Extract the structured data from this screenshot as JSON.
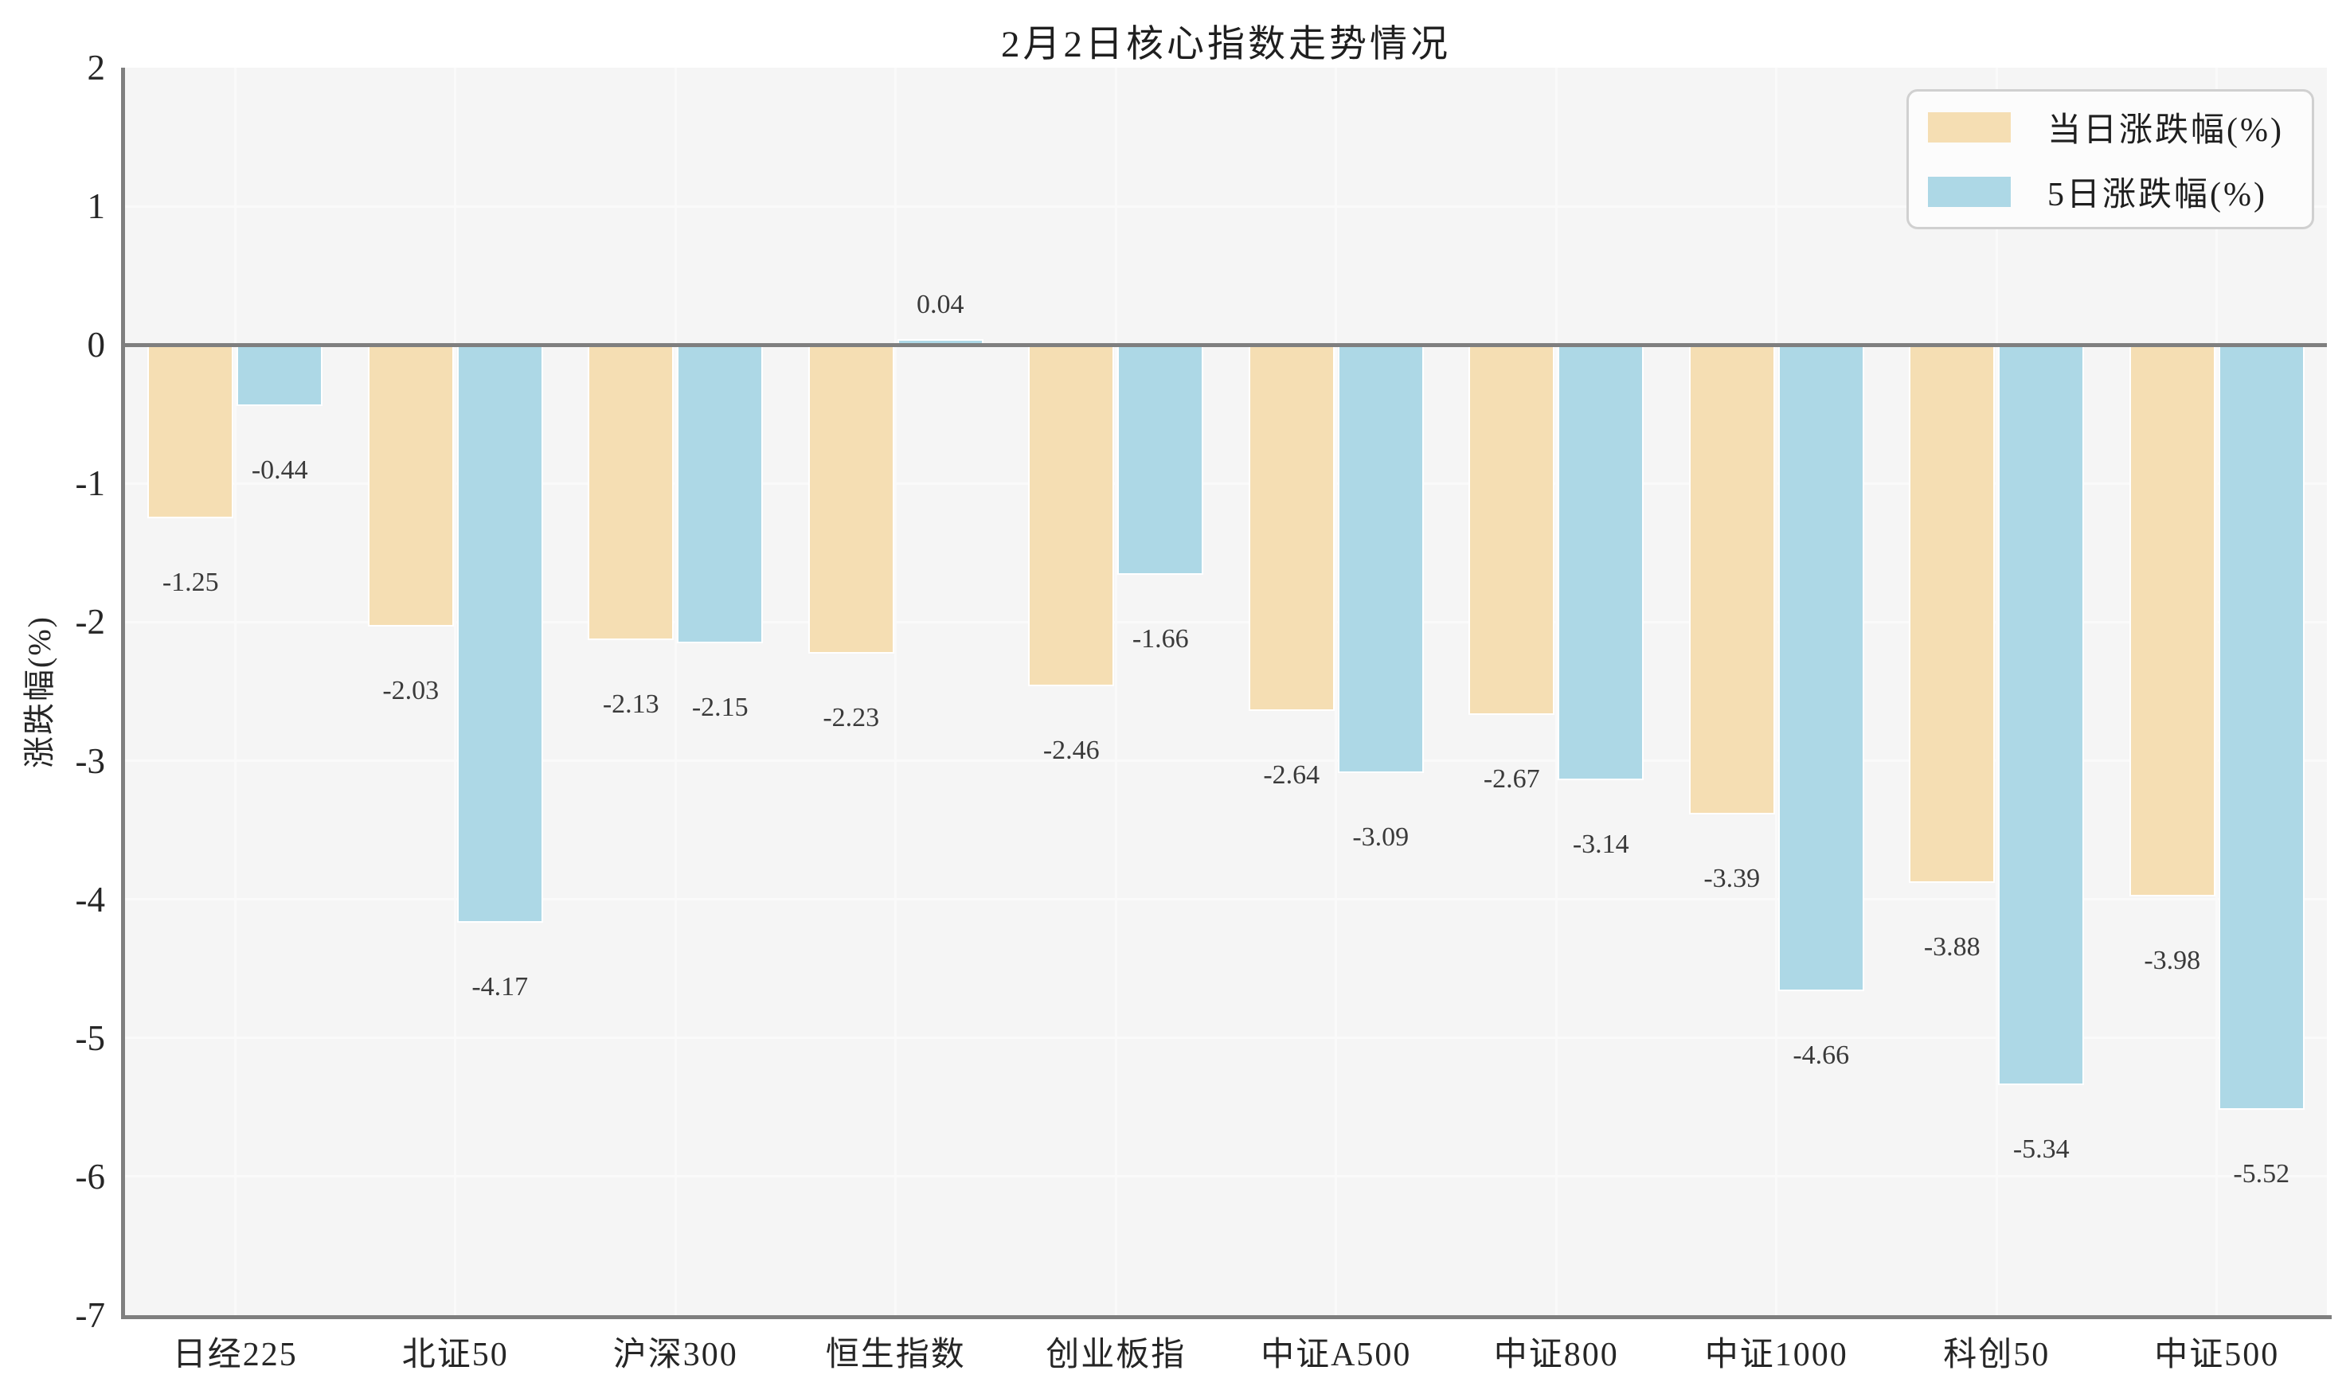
{
  "title": "2月2日核心指数走势情况",
  "colors": {
    "series_daily": "#F5DEB3",
    "series_5day": "#ADD8E6",
    "plot_background": "#f5f5f5",
    "gridline": "#fafafa",
    "axis_spine": "#7f7f7f",
    "text": "#262626",
    "bar_edge": "#ffffff"
  },
  "chart_data": {
    "type": "bar",
    "title": "2月2日核心指数走势情况",
    "categories": [
      "日经225",
      "北证50",
      "沪深300",
      "恒生指数",
      "创业板指",
      "中证A500",
      "中证800",
      "中证1000",
      "科创50",
      "中证500"
    ],
    "series": [
      {
        "name": "当日涨跌幅(%)",
        "color": "#F5DEB3",
        "values": [
          -1.25,
          -2.03,
          -2.13,
          -2.23,
          -2.46,
          -2.64,
          -2.67,
          -3.39,
          -3.88,
          -3.98
        ]
      },
      {
        "name": "5日涨跌幅(%)",
        "color": "#ADD8E6",
        "values": [
          -0.44,
          -4.17,
          -2.15,
          0.04,
          -1.66,
          -3.09,
          -3.14,
          -4.66,
          -5.34,
          -5.52
        ]
      }
    ],
    "xlabel": "",
    "ylabel": "涨跌幅(%)",
    "ylim": [
      -7,
      2
    ],
    "yticks": [
      2,
      1,
      0,
      -1,
      -2,
      -3,
      -4,
      -5,
      -6,
      -7
    ],
    "grid": true,
    "legend_position": "upper right",
    "value_labels_decimals": 2
  }
}
